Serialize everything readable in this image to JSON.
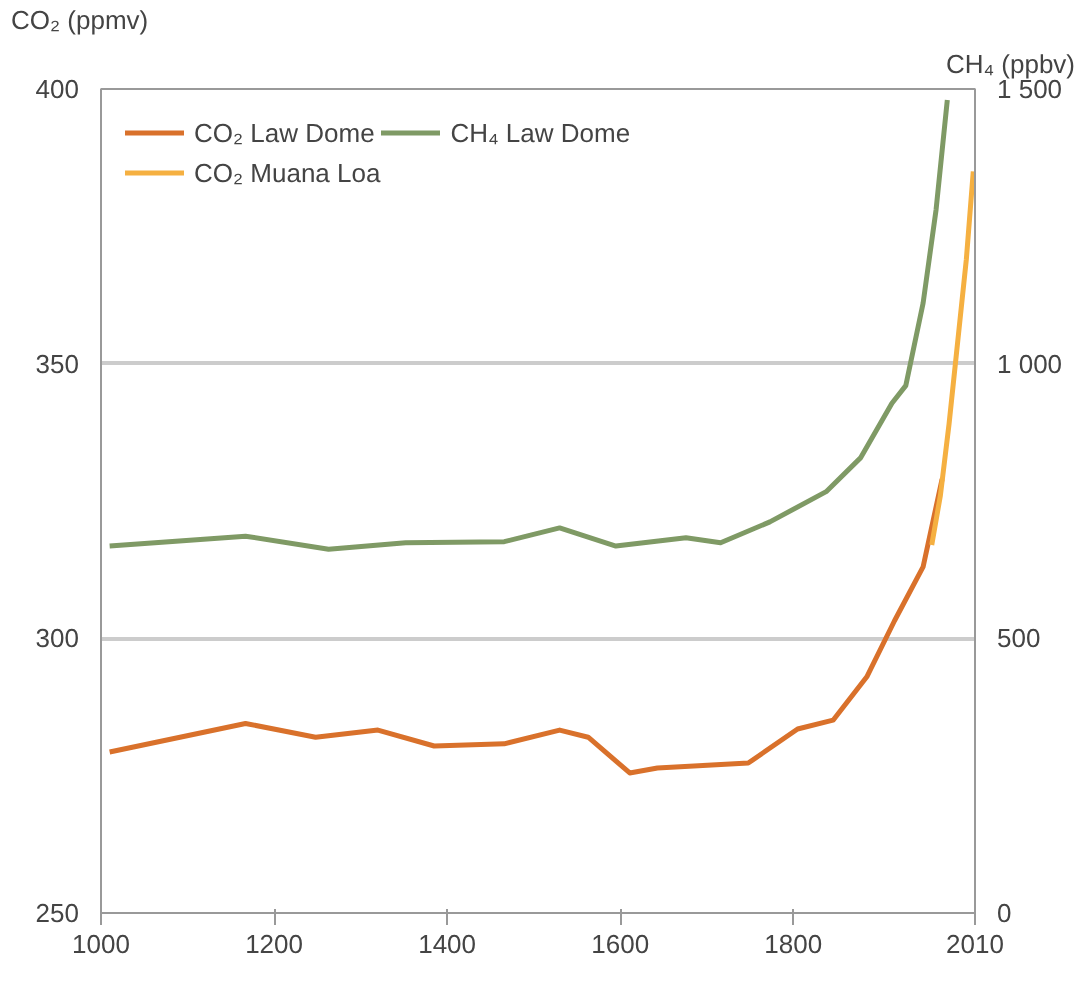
{
  "chart_data": {
    "type": "line",
    "ylabel": "CO₂ (ppmv)",
    "y2label": "CH₄ (ppbv)",
    "xlim": [
      1000,
      2010
    ],
    "xticks": [
      1000,
      1200,
      1400,
      1600,
      1800,
      2010
    ],
    "ylim": [
      250,
      400
    ],
    "yticks": [
      250,
      300,
      350,
      400
    ],
    "y2lim": [
      0,
      1500
    ],
    "y2ticks": [
      0,
      500,
      {
        "value": 1000,
        "label": "1 000"
      },
      {
        "value": 1500,
        "label": "1 500"
      }
    ],
    "grid": "y",
    "legend": "top left",
    "line_style": "solid",
    "series": [
      {
        "name": "CO₂ Law Dome",
        "color": "#d9712b",
        "x": [
          1010,
          1167,
          1248,
          1320,
          1385,
          1466,
          1530,
          1563,
          1611,
          1643,
          1748,
          1805,
          1846,
          1885,
          1917,
          1950,
          1972
        ],
        "values": [
          279.3,
          284.5,
          282,
          283.3,
          280.4,
          280.8,
          283.3,
          282,
          275.5,
          276.4,
          277.3,
          283.5,
          285.1,
          293,
          303.2,
          313,
          329
        ]
      },
      {
        "name": "CO₂ Muana Loa",
        "color": "#f5b041",
        "x": [
          1960,
          1970,
          1980,
          1990,
          2000,
          2008
        ],
        "values": [
          317,
          326,
          339,
          354,
          369,
          385
        ]
      },
      {
        "name": "CH₄ Law Dome",
        "color": "#7f9a65",
        "axis": "y2",
        "x": [
          1010,
          1167,
          1263,
          1352,
          1466,
          1530,
          1595,
          1676,
          1716,
          1773,
          1838,
          1878,
          1914,
          1930,
          1950,
          1965,
          1978
        ],
        "values": [
          668,
          686,
          662,
          674,
          676,
          701,
          668,
          683,
          674,
          712,
          767,
          829,
          928,
          960,
          1110,
          1280,
          1480
        ]
      }
    ]
  }
}
